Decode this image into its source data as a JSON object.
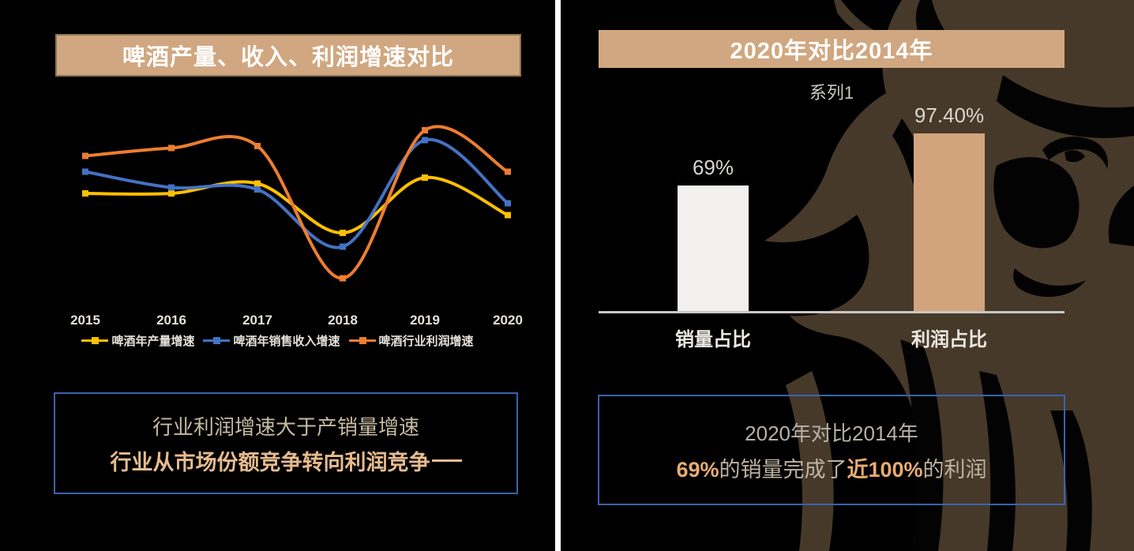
{
  "left_slide": {
    "title": "啤酒产量、收入、利润增速对比",
    "callout": {
      "line1": "行业利润增速大于产销量增速",
      "line2": "行业从市场份额竞争转向利润竞争"
    }
  },
  "right_slide": {
    "title": "2020年对比2014年",
    "series_legend": "系列1",
    "callout": {
      "line1": "2020年对比2014年",
      "line2_parts": [
        {
          "text": "69%",
          "bold": true
        },
        {
          "text": "的销量完成了",
          "bold": false
        },
        {
          "text": "近100%",
          "bold": true
        },
        {
          "text": "的利润",
          "bold": false
        }
      ]
    }
  },
  "colors": {
    "background": "#000000",
    "divider": "#FFFFFF",
    "title_bar": "#D0A780",
    "callout_border": "#3A63AE",
    "series_yellow": "#FFC000",
    "series_blue": "#4472C4",
    "series_orange": "#ED7D31",
    "bar_white": "#F1F0EE",
    "bar_tan": "#D2A47E",
    "lion_brown": "#46392A",
    "axis_gray": "#C9C6C2"
  },
  "chart_data": [
    {
      "type": "line",
      "title": "啤酒产量、收入、利润增速对比",
      "categories": [
        "2015",
        "2016",
        "2017",
        "2018",
        "2019",
        "2020"
      ],
      "series": [
        {
          "name": "啤酒年产量增速",
          "color": "#FFC000",
          "values": [
            62,
            62,
            67,
            42,
            70,
            51
          ]
        },
        {
          "name": "啤酒年销售收入增速",
          "color": "#4472C4",
          "values": [
            73,
            65,
            64,
            35,
            89,
            57
          ]
        },
        {
          "name": "啤酒行业利润增速",
          "color": "#ED7D31",
          "values": [
            81,
            85,
            86,
            19,
            94,
            73
          ]
        }
      ],
      "note": "no y-axis shown in source; values are relative estimates (0-100 of plot height)",
      "legend_position": "bottom",
      "grid": false,
      "smooth": true
    },
    {
      "type": "bar",
      "title": "2020年对比2014年",
      "legend": [
        "系列1"
      ],
      "categories": [
        "销量占比",
        "利润占比"
      ],
      "values": [
        69,
        97.4
      ],
      "data_labels": [
        "69%",
        "97.40%"
      ],
      "bar_colors": [
        "#F1F0EE",
        "#D2A47E"
      ],
      "ylim": [
        0,
        100
      ],
      "grid": false,
      "legend_position": "top"
    }
  ]
}
